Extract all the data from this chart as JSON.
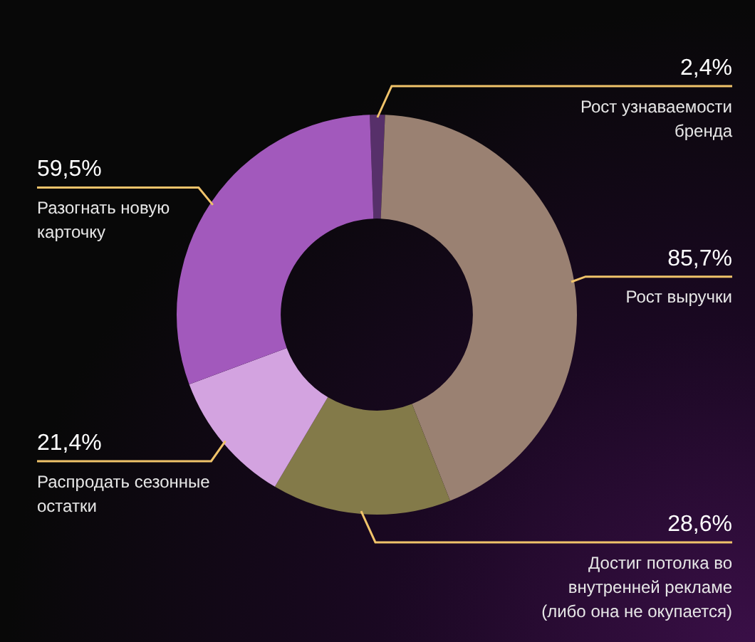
{
  "chart_data": {
    "type": "donut",
    "categories": [
      "Рост узнаваемости бренда",
      "Рост выручки",
      "Достиг потолка во внутренней рекламе (либо она не окупается)",
      "Распродать сезонные остатки",
      "Разогнать новую карточку"
    ],
    "values": [
      2.4,
      85.7,
      28.6,
      21.4,
      59.5
    ],
    "value_labels": [
      "2,4%",
      "85,7%",
      "28,6%",
      "21,4%",
      "59,5%"
    ],
    "colors": [
      "#57306a",
      "#9a8172",
      "#837a49",
      "#d3a3e0",
      "#a259bc"
    ],
    "legend": false
  }
}
